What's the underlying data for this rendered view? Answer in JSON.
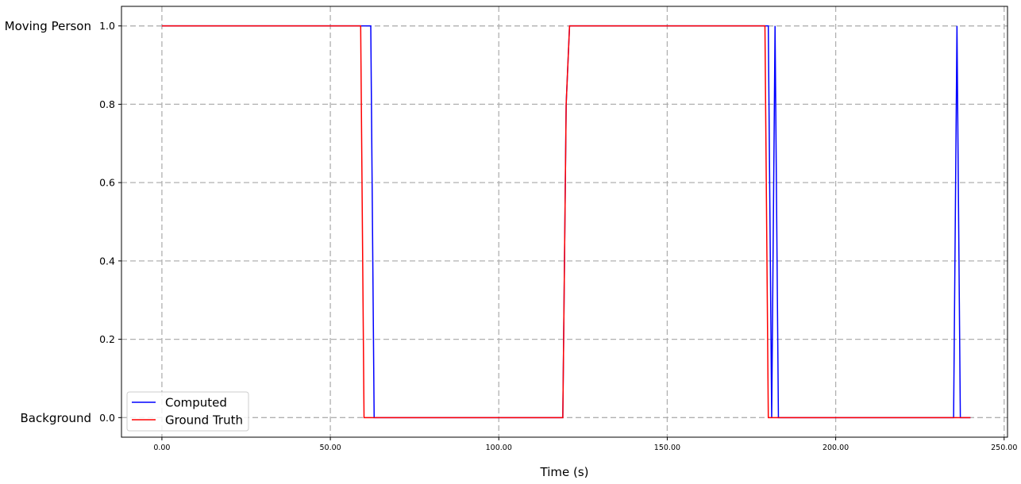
{
  "chart_data": {
    "type": "line",
    "title": "",
    "xlabel": "Time (s)",
    "ylabel": "",
    "xlim": [
      -12,
      251
    ],
    "ylim": [
      -0.05,
      1.05
    ],
    "x_ticks": [
      0,
      50,
      100,
      150,
      200,
      250
    ],
    "x_tick_labels": [
      "0.00",
      "50.00",
      "100.00",
      "150.00",
      "200.00",
      "250.00"
    ],
    "y_ticks": [
      0.0,
      0.2,
      0.4,
      0.6,
      0.8,
      1.0
    ],
    "y_tick_labels": [
      "0.0",
      "0.2",
      "0.4",
      "0.6",
      "0.8",
      "1.0"
    ],
    "y_category_labels": [
      {
        "y": 1.0,
        "label": "Moving Person"
      },
      {
        "y": 0.0,
        "label": "Background"
      }
    ],
    "grid": true,
    "legend_position": "lower-left",
    "series": [
      {
        "name": "Computed",
        "color": "#0000ff",
        "points": [
          [
            0,
            1
          ],
          [
            62,
            1
          ],
          [
            63,
            0
          ],
          [
            119,
            0
          ],
          [
            120,
            0.8
          ],
          [
            121,
            1
          ],
          [
            180,
            1
          ],
          [
            181,
            0
          ],
          [
            182,
            1
          ],
          [
            183,
            0
          ],
          [
            235,
            0
          ],
          [
            236,
            1
          ],
          [
            237,
            0
          ],
          [
            240,
            0
          ]
        ]
      },
      {
        "name": "Ground Truth",
        "color": "#ff0000",
        "points": [
          [
            0,
            1
          ],
          [
            59,
            1
          ],
          [
            60,
            0
          ],
          [
            119,
            0
          ],
          [
            120,
            0.8
          ],
          [
            121,
            1
          ],
          [
            179,
            1
          ],
          [
            180,
            0
          ],
          [
            240,
            0
          ]
        ]
      }
    ]
  }
}
